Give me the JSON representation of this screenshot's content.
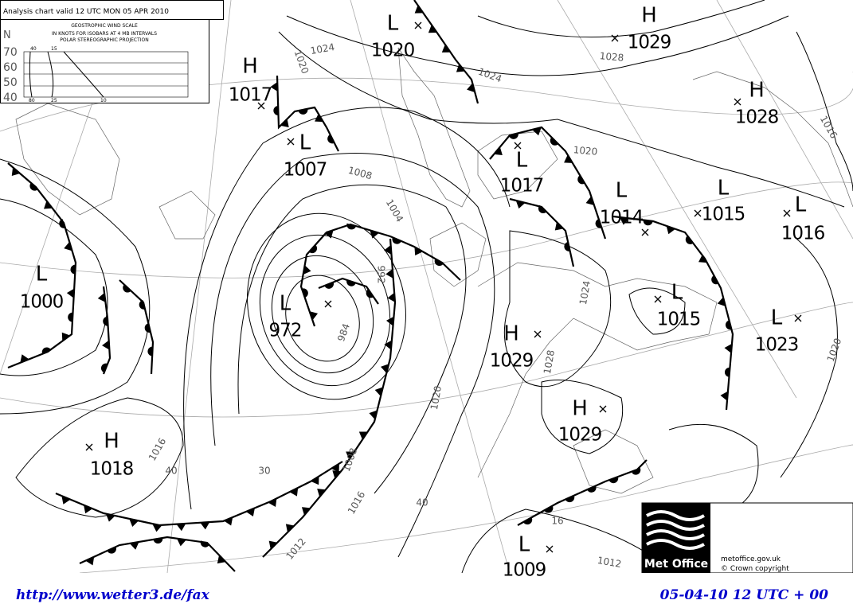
{
  "header": {
    "title": "Analysis chart valid 12 UTC MON 05 APR 2010"
  },
  "wind_scale": {
    "title": "GEOSTROPHIC WIND SCALE",
    "subtitle": "IN KNOTS FOR ISOBARS AT 4 MB INTERVALS",
    "projection": "POLAR STEREOGRAPHIC PROJECTION",
    "latitude_heading": "N",
    "latitudes": [
      "70",
      "60",
      "50",
      "40"
    ],
    "speeds_top": [
      "40",
      "15"
    ],
    "speeds_bottom": [
      "80",
      "25",
      "10"
    ]
  },
  "pressure_centers": [
    {
      "type": "L",
      "value": "1020"
    },
    {
      "type": "H",
      "value": "1029"
    },
    {
      "type": "H",
      "value": "1017"
    },
    {
      "type": "L",
      "value": "1007"
    },
    {
      "type": "H",
      "value": "1028"
    },
    {
      "type": "L",
      "value": "1017"
    },
    {
      "type": "L",
      "value": "1014"
    },
    {
      "type": "L",
      "value": "1015"
    },
    {
      "type": "L",
      "value": "1016"
    },
    {
      "type": "L",
      "value": "1000"
    },
    {
      "type": "L",
      "value": "972"
    },
    {
      "type": "L",
      "value": "1015"
    },
    {
      "type": "L",
      "value": "1023"
    },
    {
      "type": "H",
      "value": "1029"
    },
    {
      "type": "H",
      "value": "1029"
    },
    {
      "type": "H",
      "value": "1018"
    },
    {
      "type": "L",
      "value": "1009"
    }
  ],
  "isobar_labels": [
    "1024",
    "1020",
    "1028",
    "1024",
    "1020",
    "1008",
    "1004",
    "992",
    "984",
    "1016",
    "40",
    "30",
    "1008",
    "1016",
    "1012",
    "1020",
    "1024",
    "1028",
    "1012",
    "1016",
    "1020",
    "40",
    "16"
  ],
  "logo": {
    "name": "Met Office",
    "url": "metoffice.gov.uk",
    "copyright": "© Crown copyright"
  },
  "footer": {
    "url": "http://www.wetter3.de/fax",
    "timestamp": "05-04-10 12 UTC + 00"
  }
}
